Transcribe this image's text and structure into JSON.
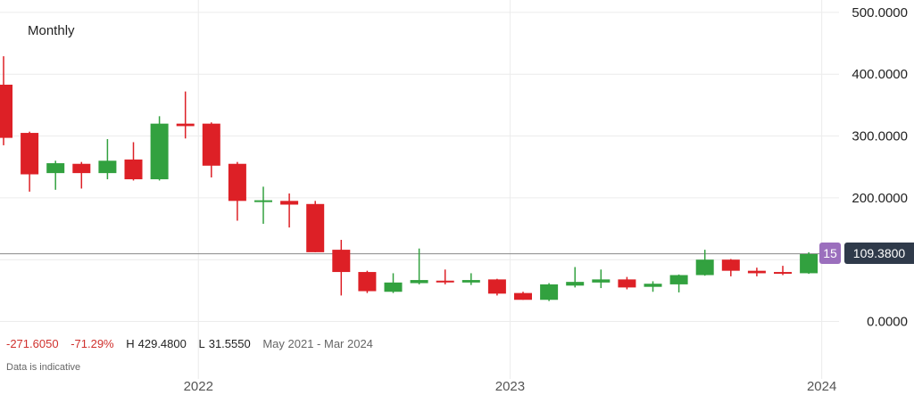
{
  "chart_data": {
    "type": "candlestick",
    "title": "Monthly",
    "ylim": [
      -18,
      520
    ],
    "y_ticks": [
      0,
      100,
      200,
      300,
      400,
      500
    ],
    "y_tick_labels": [
      "0.0000",
      "",
      "200.0000",
      "300.0000",
      "400.0000",
      "500.0000"
    ],
    "x_ticks": [
      "2022",
      "2023",
      "2024"
    ],
    "candles": [
      {
        "month": "2021-05",
        "open": 383,
        "high": 429,
        "low": 285,
        "close": 297
      },
      {
        "month": "2021-06",
        "open": 305,
        "high": 307,
        "low": 210,
        "close": 238
      },
      {
        "month": "2021-07",
        "open": 240,
        "high": 260,
        "low": 213,
        "close": 256
      },
      {
        "month": "2021-08",
        "open": 255,
        "high": 258,
        "low": 215,
        "close": 240
      },
      {
        "month": "2021-09",
        "open": 240,
        "high": 295,
        "low": 230,
        "close": 260
      },
      {
        "month": "2021-10",
        "open": 262,
        "high": 290,
        "low": 228,
        "close": 230
      },
      {
        "month": "2021-11",
        "open": 230,
        "high": 332,
        "low": 228,
        "close": 320
      },
      {
        "month": "2021-12",
        "open": 320,
        "high": 372,
        "low": 296,
        "close": 316
      },
      {
        "month": "2022-01",
        "open": 320,
        "high": 322,
        "low": 233,
        "close": 252
      },
      {
        "month": "2022-02",
        "open": 255,
        "high": 258,
        "low": 163,
        "close": 195
      },
      {
        "month": "2022-03",
        "open": 195,
        "high": 218,
        "low": 158,
        "close": 196
      },
      {
        "month": "2022-04",
        "open": 195,
        "high": 207,
        "low": 152,
        "close": 189
      },
      {
        "month": "2022-05",
        "open": 190,
        "high": 195,
        "low": 112,
        "close": 112
      },
      {
        "month": "2022-06",
        "open": 116,
        "high": 132,
        "low": 42,
        "close": 80
      },
      {
        "month": "2022-07",
        "open": 80,
        "high": 82,
        "low": 46,
        "close": 49
      },
      {
        "month": "2022-08",
        "open": 48,
        "high": 78,
        "low": 46,
        "close": 63
      },
      {
        "month": "2022-09",
        "open": 62,
        "high": 118,
        "low": 60,
        "close": 67
      },
      {
        "month": "2022-10",
        "open": 66,
        "high": 84,
        "low": 60,
        "close": 64
      },
      {
        "month": "2022-11",
        "open": 63,
        "high": 78,
        "low": 59,
        "close": 67
      },
      {
        "month": "2022-12",
        "open": 68,
        "high": 69,
        "low": 42,
        "close": 45
      },
      {
        "month": "2023-01",
        "open": 46,
        "high": 48,
        "low": 35,
        "close": 35
      },
      {
        "month": "2023-02",
        "open": 35,
        "high": 62,
        "low": 33,
        "close": 60
      },
      {
        "month": "2023-03",
        "open": 58,
        "high": 88,
        "low": 55,
        "close": 64
      },
      {
        "month": "2023-04",
        "open": 63,
        "high": 84,
        "low": 54,
        "close": 68
      },
      {
        "month": "2023-05",
        "open": 68,
        "high": 72,
        "low": 52,
        "close": 55
      },
      {
        "month": "2023-06",
        "open": 56,
        "high": 65,
        "low": 48,
        "close": 61
      },
      {
        "month": "2023-07",
        "open": 60,
        "high": 76,
        "low": 47,
        "close": 75
      },
      {
        "month": "2023-08",
        "open": 75,
        "high": 116,
        "low": 74,
        "close": 100
      },
      {
        "month": "2023-09",
        "open": 100,
        "high": 101,
        "low": 73,
        "close": 82
      },
      {
        "month": "2023-10",
        "open": 82,
        "high": 87,
        "low": 73,
        "close": 78
      },
      {
        "month": "2023-11",
        "open": 80,
        "high": 90,
        "low": 75,
        "close": 78
      },
      {
        "month": "2023-12",
        "open": 78,
        "high": 112,
        "low": 77,
        "close": 109
      }
    ],
    "current_price_line": 109.38,
    "colors": {
      "up": "#32a13f",
      "down": "#dd2026",
      "grid": "#ececec",
      "price_line": "#888888"
    }
  },
  "badges": {
    "count": "15",
    "price": "109.3800"
  },
  "stats": {
    "change": "-271.6050",
    "change_pct": "-71.29%",
    "high_label": "H",
    "high_value": "429.4800",
    "low_label": "L",
    "low_value": "31.5550",
    "range": "May 2021 - Mar 2024"
  },
  "note": "Data is indicative"
}
